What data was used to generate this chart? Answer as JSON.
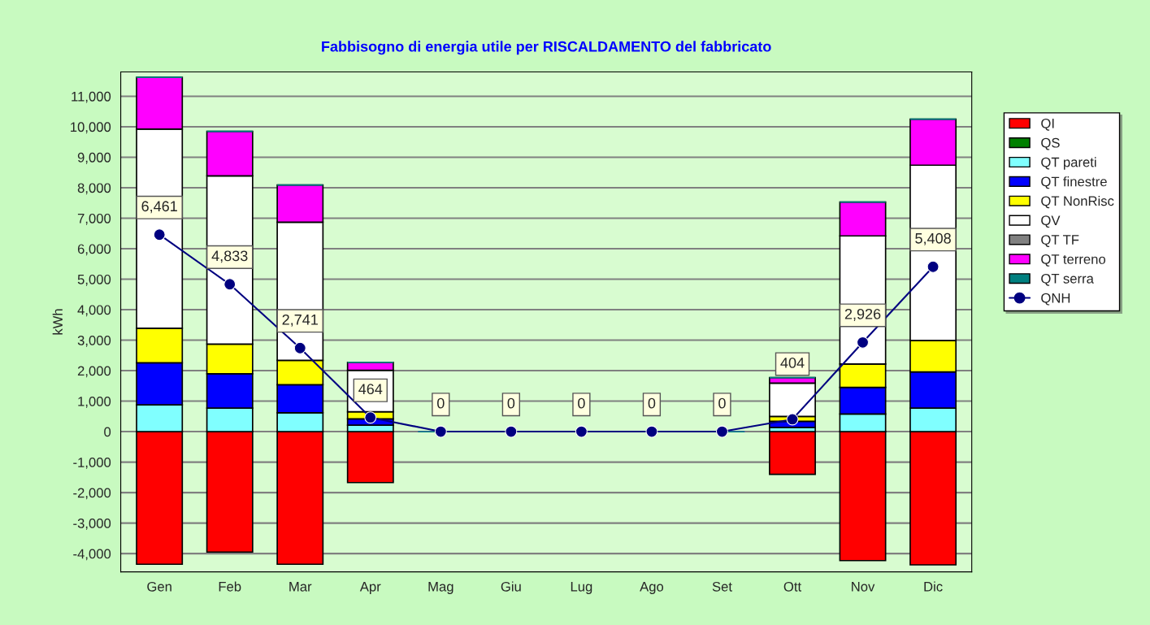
{
  "chart_data": {
    "type": "bar",
    "stacked": true,
    "title": "Fabbisogno di energia utile per RISCALDAMENTO del fabbricato",
    "ylabel": "kWh",
    "categories": [
      "Gen",
      "Feb",
      "Mar",
      "Apr",
      "Mag",
      "Giu",
      "Lug",
      "Ago",
      "Set",
      "Ott",
      "Nov",
      "Dic"
    ],
    "series": [
      {
        "name": "QI",
        "color": "#ff0000",
        "values": [
          -4350,
          -3950,
          -4350,
          -1670,
          0,
          0,
          0,
          0,
          0,
          -1400,
          -4230,
          -4370
        ]
      },
      {
        "name": "QS",
        "color": "#008000",
        "values": [
          0,
          0,
          0,
          0,
          0,
          0,
          0,
          0,
          0,
          0,
          0,
          0
        ]
      },
      {
        "name": "QT pareti",
        "color": "#80ffff",
        "values": [
          880,
          770,
          620,
          210,
          0,
          0,
          0,
          0,
          0,
          140,
          580,
          770
        ]
      },
      {
        "name": "QT finestre",
        "color": "#0000ff",
        "values": [
          1380,
          1130,
          920,
          210,
          0,
          0,
          0,
          0,
          0,
          200,
          870,
          1190
        ]
      },
      {
        "name": "QT NonRisc",
        "color": "#ffff00",
        "values": [
          1130,
          970,
          800,
          230,
          0,
          0,
          0,
          0,
          0,
          160,
          770,
          1030
        ]
      },
      {
        "name": "QV",
        "color": "#ffffff",
        "values": [
          6530,
          5520,
          4530,
          1360,
          0,
          0,
          0,
          0,
          0,
          1090,
          4200,
          5750
        ]
      },
      {
        "name": "QT TF",
        "color": "#808080",
        "values": [
          0,
          0,
          0,
          0,
          0,
          0,
          0,
          0,
          0,
          0,
          0,
          0
        ]
      },
      {
        "name": "QT terreno",
        "color": "#ff00ff",
        "values": [
          1700,
          1460,
          1220,
          260,
          0,
          0,
          0,
          0,
          0,
          180,
          1110,
          1510
        ]
      },
      {
        "name": "QT serra",
        "color": "#008080",
        "values": [
          0,
          0,
          0,
          0,
          0,
          0,
          0,
          0,
          0,
          0,
          0,
          0
        ]
      },
      {
        "name": "QNH",
        "type": "line",
        "color": "#000080",
        "marker": "circle",
        "values": [
          6461,
          4833,
          2741,
          464,
          0,
          0,
          0,
          0,
          0,
          404,
          2926,
          5408
        ],
        "value_labels": [
          "6,461",
          "4,833",
          "2,741",
          "464",
          "0",
          "0",
          "0",
          "0",
          "0",
          "404",
          "2,926",
          "5,408"
        ]
      }
    ],
    "ylim": [
      -4600,
      11800
    ],
    "yticks": [
      {
        "value": -4000,
        "label": "-4,000"
      },
      {
        "value": -3000,
        "label": "-3,000"
      },
      {
        "value": -2000,
        "label": "-2,000"
      },
      {
        "value": -1000,
        "label": "-1,000"
      },
      0,
      {
        "value": 1000,
        "label": "1,000"
      },
      {
        "value": 2000,
        "label": "2,000"
      },
      {
        "value": 3000,
        "label": "3,000"
      },
      {
        "value": 4000,
        "label": "4,000"
      },
      {
        "value": 5000,
        "label": "5,000"
      },
      {
        "value": 6000,
        "label": "6,000"
      },
      {
        "value": 7000,
        "label": "7,000"
      },
      {
        "value": 8000,
        "label": "8,000"
      },
      {
        "value": 9000,
        "label": "9,000"
      },
      {
        "value": 10000,
        "label": "10,000"
      },
      {
        "value": 11000,
        "label": "11,000"
      }
    ],
    "grid": "y",
    "legend": "right"
  }
}
